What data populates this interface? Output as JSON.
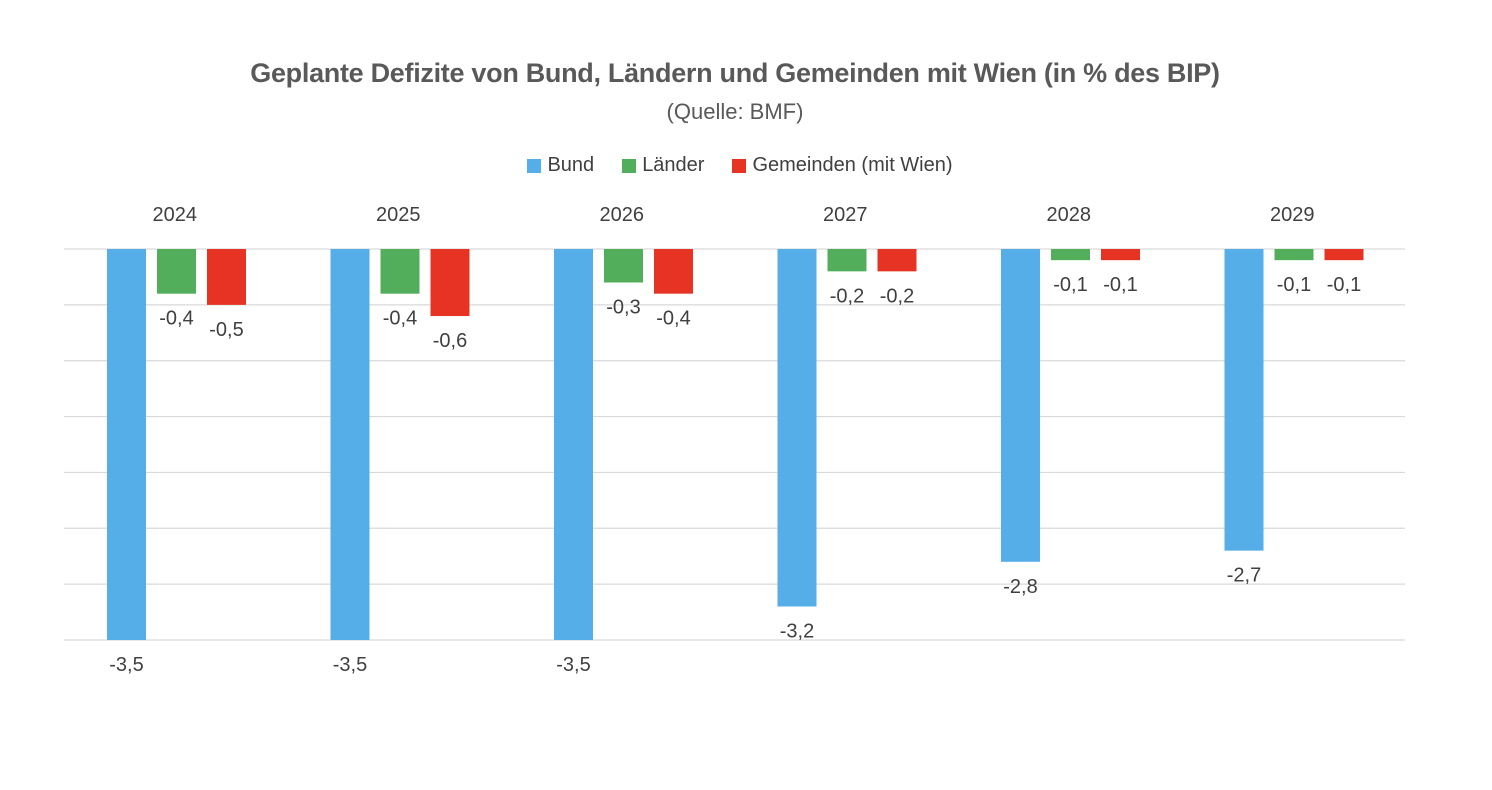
{
  "colors": {
    "bund": "#56aee8",
    "laender": "#53ae5b",
    "gemeinden": "#e63323",
    "grid": "#d9d9d9",
    "text": "#404040"
  },
  "chart_data": {
    "type": "bar",
    "title": "Geplante Defizite von Bund, Ländern und Gemeinden mit Wien (in % des BIP)",
    "subtitle": "(Quelle: BMF)",
    "categories": [
      "2024",
      "2025",
      "2026",
      "2027",
      "2028",
      "2029"
    ],
    "series": [
      {
        "name": "Bund",
        "values": [
          -3.5,
          -3.5,
          -3.5,
          -3.2,
          -2.8,
          -2.7
        ],
        "labels": [
          "-3,5",
          "-3,5",
          "-3,5",
          "-3,2",
          "-2,8",
          "-2,7"
        ]
      },
      {
        "name": "Länder",
        "values": [
          -0.4,
          -0.4,
          -0.3,
          -0.2,
          -0.1,
          -0.1
        ],
        "labels": [
          "-0,4",
          "-0,4",
          "-0,3",
          "-0,2",
          "-0,1",
          "-0,1"
        ]
      },
      {
        "name": "Gemeinden (mit Wien)",
        "values": [
          -0.5,
          -0.6,
          -0.4,
          -0.2,
          -0.1,
          -0.1
        ],
        "labels": [
          "-0,5",
          "-0,6",
          "-0,4",
          "-0,2",
          "-0,1",
          "-0,1"
        ]
      }
    ],
    "ylim": [
      -3.5,
      0
    ],
    "grid": true,
    "legend_position": "top",
    "category_labels_position": "top"
  }
}
